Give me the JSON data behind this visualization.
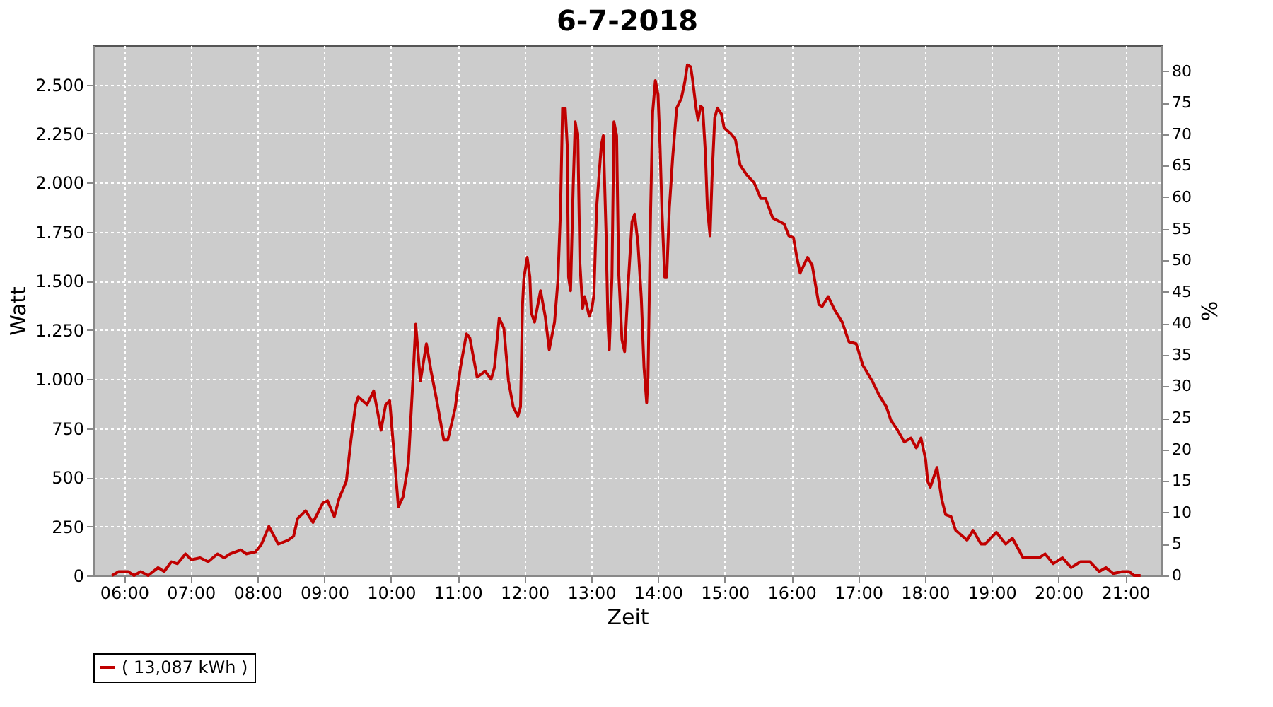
{
  "chart_data": {
    "type": "line",
    "title": "6-7-2018",
    "xlabel": "Zeit",
    "ylabel": "Watt",
    "y2label": "%",
    "xlim": [
      5.54,
      21.54
    ],
    "xticks": [
      {
        "value": 6,
        "label": "06:00"
      },
      {
        "value": 7,
        "label": "07:00"
      },
      {
        "value": 8,
        "label": "08:00"
      },
      {
        "value": 9,
        "label": "09:00"
      },
      {
        "value": 10,
        "label": "10:00"
      },
      {
        "value": 11,
        "label": "11:00"
      },
      {
        "value": 12,
        "label": "12:00"
      },
      {
        "value": 13,
        "label": "13:00"
      },
      {
        "value": 14,
        "label": "14:00"
      },
      {
        "value": 15,
        "label": "15:00"
      },
      {
        "value": 16,
        "label": "16:00"
      },
      {
        "value": 17,
        "label": "17:00"
      },
      {
        "value": 18,
        "label": "18:00"
      },
      {
        "value": 19,
        "label": "19:00"
      },
      {
        "value": 20,
        "label": "20:00"
      },
      {
        "value": 21,
        "label": "21:00"
      }
    ],
    "ylim": [
      0,
      2700
    ],
    "yticks": [
      0,
      250,
      500,
      750,
      {
        "value": 1000,
        "label": "1.000"
      },
      {
        "value": 1250,
        "label": "1.250"
      },
      {
        "value": 1500,
        "label": "1.500"
      },
      {
        "value": 1750,
        "label": "1.750"
      },
      {
        "value": 2000,
        "label": "2.000"
      },
      {
        "value": 2250,
        "label": "2.250"
      },
      {
        "value": 2500,
        "label": "2.500"
      }
    ],
    "y2lim": [
      0,
      84.1
    ],
    "y2ticks": [
      0,
      5,
      10,
      15,
      20,
      25,
      30,
      35,
      40,
      45,
      50,
      55,
      60,
      65,
      70,
      75,
      80
    ],
    "grid": true,
    "legend": "bottom",
    "marker": "none",
    "line_style": "solid",
    "series": [
      {
        "name": "( 13,087 kWh )",
        "color": "#c00000",
        "x": [
          5.82,
          5.92,
          6.06,
          6.15,
          6.25,
          6.36,
          6.51,
          6.6,
          6.71,
          6.8,
          6.92,
          7.01,
          7.14,
          7.26,
          7.4,
          7.5,
          7.59,
          7.75,
          7.83,
          7.97,
          8.06,
          8.17,
          8.31,
          8.46,
          8.54,
          8.6,
          8.72,
          8.83,
          8.98,
          9.05,
          9.15,
          9.22,
          9.33,
          9.4,
          9.47,
          9.51,
          9.64,
          9.74,
          9.85,
          9.92,
          9.98,
          10.05,
          10.11,
          10.18,
          10.26,
          10.33,
          10.37,
          10.44,
          10.53,
          10.6,
          10.68,
          10.79,
          10.85,
          10.96,
          11.04,
          11.13,
          11.18,
          11.29,
          11.41,
          11.5,
          11.55,
          11.62,
          11.69,
          11.76,
          11.83,
          11.9,
          11.94,
          11.97,
          11.99,
          12.04,
          12.08,
          12.1,
          12.15,
          12.24,
          12.31,
          12.37,
          12.45,
          12.5,
          12.54,
          12.57,
          12.61,
          12.64,
          12.66,
          12.69,
          12.73,
          12.76,
          12.8,
          12.83,
          12.87,
          12.9,
          12.97,
          13.01,
          13.04,
          13.08,
          13.15,
          13.18,
          13.22,
          13.25,
          13.27,
          13.31,
          13.34,
          13.38,
          13.41,
          13.46,
          13.5,
          13.56,
          13.61,
          13.65,
          13.7,
          13.75,
          13.79,
          13.83,
          13.85,
          13.89,
          13.92,
          13.96,
          14.0,
          14.03,
          14.06,
          14.1,
          14.13,
          14.17,
          14.22,
          14.28,
          14.35,
          14.4,
          14.44,
          14.49,
          14.52,
          14.57,
          14.6,
          14.64,
          14.67,
          14.71,
          14.74,
          14.78,
          14.81,
          14.85,
          14.89,
          14.95,
          14.99,
          15.09,
          15.16,
          15.23,
          15.33,
          15.44,
          15.54,
          15.61,
          15.72,
          15.89,
          15.96,
          16.03,
          16.08,
          16.13,
          16.24,
          16.31,
          16.41,
          16.46,
          16.55,
          16.65,
          16.76,
          16.86,
          16.97,
          17.07,
          17.21,
          17.31,
          17.42,
          17.49,
          17.59,
          17.69,
          17.79,
          17.87,
          17.94,
          18.01,
          18.04,
          18.08,
          18.18,
          18.25,
          18.31,
          18.39,
          18.46,
          18.63,
          18.72,
          18.84,
          18.9,
          19.07,
          19.21,
          19.31,
          19.47,
          19.6,
          19.71,
          19.8,
          19.92,
          20.06,
          20.19,
          20.33,
          20.47,
          20.61,
          20.71,
          20.82,
          20.96,
          21.06,
          21.13,
          21.23
        ],
        "values": [
          0,
          20,
          20,
          0,
          20,
          0,
          40,
          20,
          70,
          60,
          110,
          80,
          90,
          70,
          110,
          90,
          110,
          130,
          110,
          120,
          160,
          250,
          160,
          180,
          200,
          290,
          330,
          270,
          370,
          380,
          300,
          390,
          480,
          690,
          870,
          910,
          870,
          940,
          740,
          870,
          890,
          600,
          350,
          400,
          570,
          1010,
          1280,
          990,
          1180,
          1040,
          900,
          690,
          690,
          850,
          1060,
          1230,
          1210,
          1010,
          1040,
          1000,
          1060,
          1310,
          1260,
          990,
          860,
          810,
          860,
          1380,
          1510,
          1620,
          1520,
          1340,
          1290,
          1450,
          1320,
          1150,
          1290,
          1500,
          1870,
          2380,
          2380,
          2190,
          1520,
          1450,
          1990,
          2310,
          2220,
          1590,
          1360,
          1420,
          1320,
          1360,
          1430,
          1870,
          2190,
          2240,
          1760,
          1290,
          1150,
          1520,
          2310,
          2240,
          1550,
          1200,
          1140,
          1520,
          1800,
          1840,
          1690,
          1410,
          1060,
          880,
          1010,
          1870,
          2360,
          2520,
          2450,
          2190,
          1850,
          1520,
          1520,
          1870,
          2130,
          2380,
          2430,
          2510,
          2600,
          2590,
          2520,
          2380,
          2320,
          2390,
          2380,
          2150,
          1870,
          1730,
          2030,
          2330,
          2380,
          2350,
          2280,
          2250,
          2220,
          2090,
          2040,
          2000,
          1920,
          1920,
          1820,
          1790,
          1730,
          1720,
          1620,
          1540,
          1620,
          1580,
          1380,
          1370,
          1420,
          1350,
          1290,
          1190,
          1180,
          1070,
          990,
          920,
          860,
          790,
          740,
          680,
          700,
          650,
          700,
          590,
          480,
          450,
          550,
          390,
          310,
          300,
          230,
          180,
          230,
          160,
          160,
          220,
          160,
          190,
          90,
          90,
          90,
          110,
          60,
          90,
          40,
          70,
          70,
          20,
          40,
          10,
          20,
          20,
          0,
          0
        ]
      }
    ]
  }
}
